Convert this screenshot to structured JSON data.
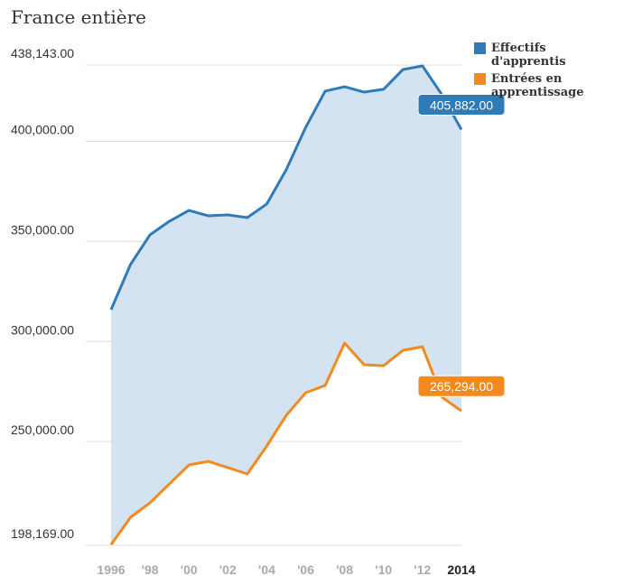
{
  "chart_data": {
    "type": "line",
    "title": "France entière",
    "categories": [
      "1996",
      null,
      "'98",
      null,
      "'00",
      null,
      "'02",
      null,
      "'04",
      null,
      "'06",
      null,
      "'08",
      null,
      "'10",
      null,
      "'12",
      null,
      "2014"
    ],
    "series": [
      {
        "name": "Effectifs d'apprentis",
        "color": "#2f7bb8",
        "values": [
          315900,
          338500,
          353300,
          360100,
          365500,
          362800,
          363250,
          361900,
          368700,
          385800,
          407000,
          425100,
          427300,
          424600,
          426000,
          435900,
          437700,
          423300,
          405882
        ],
        "value_labels": [
          null,
          null,
          null,
          null,
          null,
          null,
          null,
          null,
          null,
          null,
          null,
          null,
          null,
          null,
          null,
          null,
          null,
          null,
          "405,882.00"
        ]
      },
      {
        "name": "Entrées en apprentissage",
        "color": "#f28a1e",
        "values": [
          198500,
          212150,
          219400,
          228850,
          238300,
          240100,
          237000,
          233800,
          247800,
          263100,
          274400,
          278000,
          299200,
          288400,
          287900,
          295600,
          297400,
          272200,
          265294
        ],
        "value_labels": [
          null,
          null,
          null,
          null,
          null,
          null,
          null,
          null,
          null,
          null,
          null,
          null,
          null,
          null,
          null,
          null,
          null,
          null,
          "265,294.00"
        ]
      }
    ],
    "ylim": [
      198169,
      438143
    ],
    "yticks": [
      {
        "value": 198169,
        "label": "198,169.00"
      },
      {
        "value": 250000,
        "label": "250,000.00"
      },
      {
        "value": 300000,
        "label": "300,000.00"
      },
      {
        "value": 350000,
        "label": "350,000.00"
      },
      {
        "value": 400000,
        "label": "400,000.00"
      },
      {
        "value": 438143,
        "label": "438,143.00"
      }
    ],
    "grid": true,
    "fill_between": true,
    "legend": "top-right"
  }
}
